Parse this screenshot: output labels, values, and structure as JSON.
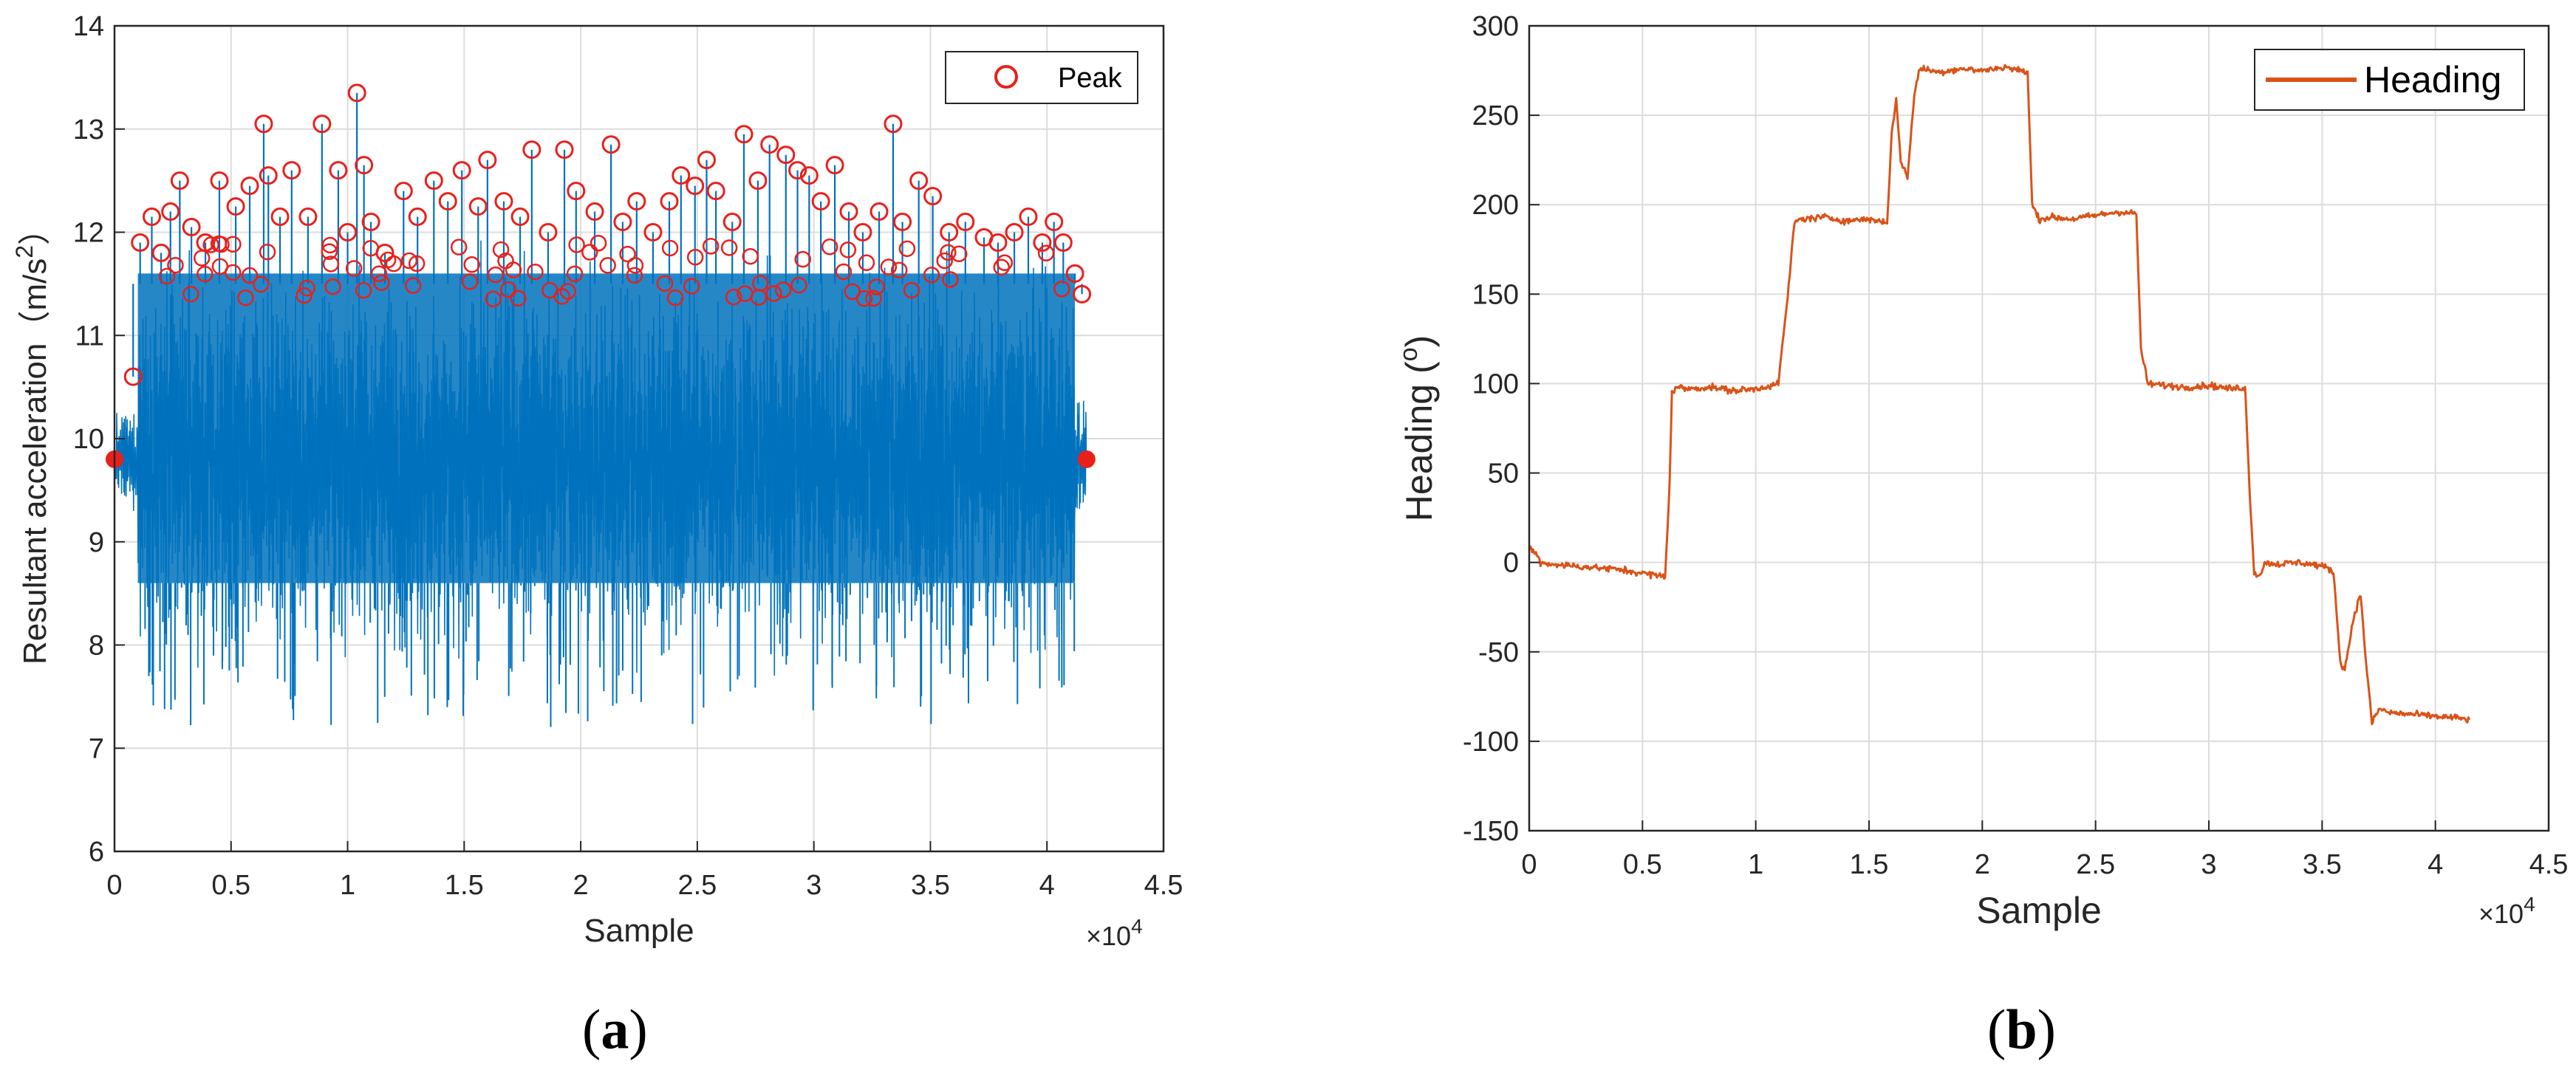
{
  "panels": [
    {
      "label_open": "(",
      "label_letter": "a",
      "label_close": ")"
    },
    {
      "label_open": "(",
      "label_letter": "b",
      "label_close": ")"
    }
  ],
  "chart_data": [
    {
      "type": "line",
      "title": "",
      "xlabel": "Sample",
      "ylabel": "Resultant acceleration（m/s",
      "ylabel_superscript": "2",
      "ylabel_close": "）",
      "x_multiplier": "×10",
      "x_multiplier_exp": "4",
      "xlim": [
        0,
        4.5
      ],
      "ylim": [
        6,
        14
      ],
      "xticks": [
        0,
        0.5,
        1,
        1.5,
        2,
        2.5,
        3,
        3.5,
        4,
        4.5
      ],
      "xtick_labels": [
        "0",
        "0.5",
        "1",
        "1.5",
        "2",
        "2.5",
        "3",
        "3.5",
        "4",
        "4.5"
      ],
      "yticks": [
        6,
        7,
        8,
        9,
        10,
        11,
        12,
        13,
        14
      ],
      "ytick_labels": [
        "6",
        "7",
        "8",
        "9",
        "10",
        "11",
        "12",
        "13",
        "14"
      ],
      "grid": true,
      "legend": {
        "position": "top-right",
        "entries": [
          "Peak"
        ]
      },
      "colors": {
        "signal": "#0072BD",
        "peak": "#E8201C"
      },
      "series": [
        {
          "name": "Resultant acceleration",
          "style": "dense oscillating signal",
          "x_range": [
            0,
            4.17
          ],
          "baseline": 9.8,
          "typical_range": [
            8.0,
            12.0
          ],
          "min": 6.9,
          "max": 13.35
        },
        {
          "name": "Peak",
          "marker": "circle",
          "x": [
            0.08,
            0.11,
            0.16,
            0.2,
            0.24,
            0.28,
            0.33,
            0.39,
            0.45,
            0.52,
            0.58,
            0.64,
            0.66,
            0.71,
            0.76,
            0.83,
            0.89,
            0.96,
            1.0,
            1.04,
            1.07,
            1.1,
            1.16,
            1.24,
            1.3,
            1.37,
            1.43,
            1.49,
            1.56,
            1.6,
            1.67,
            1.74,
            1.79,
            1.86,
            1.93,
            1.98,
            2.06,
            2.13,
            2.18,
            2.24,
            2.31,
            2.38,
            2.43,
            2.49,
            2.54,
            2.58,
            2.65,
            2.7,
            2.76,
            2.81,
            2.88,
            2.93,
            2.98,
            3.03,
            3.09,
            3.15,
            3.21,
            3.28,
            3.34,
            3.38,
            3.45,
            3.51,
            3.58,
            3.65,
            3.73,
            3.79,
            3.86,
            3.92,
            3.98,
            4.03,
            4.07,
            4.12,
            4.15
          ],
          "y": [
            10.6,
            11.9,
            12.15,
            11.8,
            12.2,
            12.5,
            12.05,
            11.9,
            12.5,
            12.25,
            12.45,
            13.05,
            12.55,
            12.15,
            12.6,
            12.15,
            13.05,
            12.6,
            12.0,
            13.35,
            12.65,
            12.1,
            11.8,
            12.4,
            12.15,
            12.5,
            12.3,
            12.6,
            12.25,
            12.7,
            12.3,
            12.15,
            12.8,
            12.0,
            12.8,
            12.4,
            12.2,
            12.85,
            12.1,
            12.3,
            12.0,
            12.3,
            12.55,
            12.45,
            12.7,
            12.4,
            12.1,
            12.95,
            12.5,
            12.85,
            12.75,
            12.6,
            12.55,
            12.3,
            12.65,
            12.2,
            12.0,
            12.2,
            13.05,
            12.1,
            12.5,
            12.35,
            12.0,
            12.1,
            11.95,
            11.9,
            12.0,
            12.15,
            11.9,
            12.1,
            11.9,
            11.6,
            11.4
          ]
        }
      ],
      "endpoint_markers": [
        {
          "x": 0.0,
          "y": 9.8
        },
        {
          "x": 4.17,
          "y": 9.8
        }
      ]
    },
    {
      "type": "line",
      "title": "",
      "xlabel": "Sample",
      "ylabel": "Heading (",
      "ylabel_superscript": "o",
      "ylabel_close": ")",
      "x_multiplier": "×10",
      "x_multiplier_exp": "4",
      "xlim": [
        0,
        4.5
      ],
      "ylim": [
        -150,
        300
      ],
      "xticks": [
        0,
        0.5,
        1,
        1.5,
        2,
        2.5,
        3,
        3.5,
        4,
        4.5
      ],
      "xtick_labels": [
        "0",
        "0.5",
        "1",
        "1.5",
        "2",
        "2.5",
        "3",
        "3.5",
        "4",
        "4.5"
      ],
      "yticks": [
        -150,
        -100,
        -50,
        0,
        50,
        100,
        150,
        200,
        250,
        300
      ],
      "ytick_labels": [
        "-150",
        "-100",
        "-50",
        "0",
        "50",
        "100",
        "150",
        "200",
        "250",
        "300"
      ],
      "grid": true,
      "legend": {
        "position": "top-right",
        "entries": [
          "Heading"
        ]
      },
      "colors": {
        "heading": "#D95319"
      },
      "series": [
        {
          "name": "Heading",
          "x": [
            0.0,
            0.03,
            0.05,
            0.1,
            0.2,
            0.3,
            0.4,
            0.5,
            0.6,
            0.62,
            0.63,
            0.65,
            0.7,
            0.8,
            0.9,
            1.0,
            1.1,
            1.15,
            1.17,
            1.2,
            1.3,
            1.4,
            1.5,
            1.58,
            1.6,
            1.62,
            1.64,
            1.67,
            1.7,
            1.72,
            1.75,
            1.8,
            1.9,
            2.0,
            2.1,
            2.2,
            2.22,
            2.25,
            2.3,
            2.4,
            2.5,
            2.6,
            2.68,
            2.7,
            2.73,
            2.8,
            2.9,
            3.0,
            3.1,
            3.16,
            3.18,
            3.2,
            3.22,
            3.25,
            3.3,
            3.4,
            3.5,
            3.55,
            3.58,
            3.6,
            3.64,
            3.67,
            3.69,
            3.72,
            3.75,
            3.8,
            3.9,
            4.0,
            4.1,
            4.15
          ],
          "values": [
            8,
            5,
            0,
            -1,
            -2,
            -3,
            -4,
            -6,
            -8,
            45,
            95,
            98,
            97,
            98,
            96,
            97,
            100,
            160,
            190,
            192,
            193,
            191,
            192,
            190,
            240,
            258,
            225,
            215,
            262,
            275,
            276,
            274,
            276,
            275,
            277,
            274,
            200,
            192,
            193,
            192,
            194,
            196,
            195,
            120,
            100,
            99,
            98,
            99,
            97,
            98,
            40,
            -5,
            -8,
            0,
            -1,
            0,
            -2,
            -5,
            -55,
            -60,
            -30,
            -18,
            -50,
            -90,
            -82,
            -84,
            -85,
            -86,
            -87,
            -88
          ]
        }
      ]
    }
  ]
}
